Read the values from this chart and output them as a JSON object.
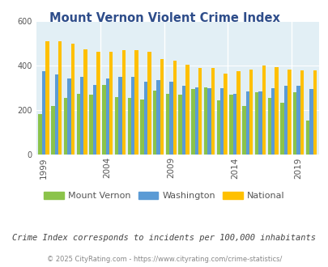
{
  "title": "Mount Vernon Violent Crime Index",
  "years": [
    1999,
    2000,
    2001,
    2002,
    2003,
    2004,
    2005,
    2006,
    2007,
    2008,
    2009,
    2010,
    2011,
    2012,
    2013,
    2014,
    2015,
    2016,
    2017,
    2018,
    2019,
    2020
  ],
  "mount_vernon": [
    185,
    220,
    255,
    275,
    270,
    315,
    260,
    255,
    250,
    290,
    275,
    270,
    295,
    305,
    245,
    270,
    220,
    280,
    255,
    235,
    280,
    155
  ],
  "washington": [
    375,
    360,
    345,
    350,
    315,
    345,
    350,
    350,
    330,
    335,
    330,
    310,
    305,
    300,
    300,
    275,
    285,
    285,
    300,
    310,
    310,
    295
  ],
  "national": [
    510,
    510,
    500,
    475,
    465,
    465,
    470,
    470,
    465,
    430,
    425,
    405,
    390,
    390,
    365,
    375,
    385,
    400,
    395,
    385,
    380,
    380
  ],
  "legend_labels": [
    "Mount Vernon",
    "Washington",
    "National"
  ],
  "colors": {
    "mount_vernon": "#8bc34a",
    "washington": "#5b9bd5",
    "national": "#ffc000"
  },
  "ylim": [
    0,
    600
  ],
  "yticks": [
    0,
    200,
    400,
    600
  ],
  "plot_bg": "#e2eff5",
  "title_color": "#2e4d8a",
  "subtitle": "Crime Index corresponds to incidents per 100,000 inhabitants",
  "subtitle_color": "#444444",
  "footer": "© 2025 CityRating.com - https://www.cityrating.com/crime-statistics/",
  "footer_color": "#888888",
  "x_tick_years": [
    1999,
    2004,
    2009,
    2014,
    2019
  ]
}
